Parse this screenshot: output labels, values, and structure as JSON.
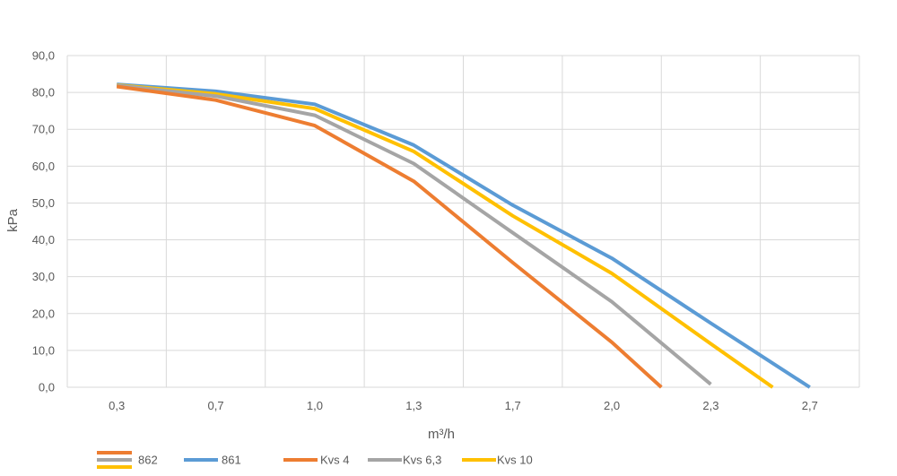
{
  "chart_data": {
    "type": "line",
    "title": "",
    "xlabel": "m³/h",
    "ylabel": "kPa",
    "categories": [
      "0,3",
      "0,7",
      "1,0",
      "1,3",
      "1,7",
      "2,0",
      "2,3",
      "2,7"
    ],
    "y_ticks": [
      "0,0",
      "10,0",
      "20,0",
      "30,0",
      "40,0",
      "50,0",
      "60,0",
      "70,0",
      "80,0",
      "90,0"
    ],
    "ylim": [
      0,
      90
    ],
    "grid": true,
    "legend_position": "bottom-left",
    "series": [
      {
        "name": "861",
        "color": "#5b9bd5",
        "points": [
          [
            0.3,
            82.2
          ],
          [
            0.7,
            80.3
          ],
          [
            1.0,
            76.8
          ],
          [
            1.3,
            65.7
          ],
          [
            1.7,
            49.4
          ],
          [
            2.0,
            35.0
          ],
          [
            2.3,
            17.4
          ],
          [
            2.7,
            0.0
          ]
        ]
      },
      {
        "name": "Kvs 10",
        "color": "#ffc000",
        "points": [
          [
            0.3,
            82.0
          ],
          [
            0.7,
            79.6
          ],
          [
            1.0,
            75.6
          ],
          [
            1.3,
            64.0
          ],
          [
            1.7,
            46.5
          ],
          [
            2.0,
            30.9
          ],
          [
            2.3,
            11.8
          ],
          [
            2.55,
            0.0
          ]
        ]
      },
      {
        "name": "Kvs 6,3",
        "color": "#a5a5a5",
        "points": [
          [
            0.3,
            81.9
          ],
          [
            0.7,
            79.0
          ],
          [
            1.0,
            73.8
          ],
          [
            1.3,
            60.7
          ],
          [
            1.7,
            41.9
          ],
          [
            2.0,
            23.2
          ],
          [
            2.3,
            0.8
          ]
        ]
      },
      {
        "name": "Kvs 4",
        "color": "#ed7d31",
        "points": [
          [
            0.3,
            81.6
          ],
          [
            0.7,
            77.9
          ],
          [
            1.0,
            71.0
          ],
          [
            1.3,
            55.9
          ],
          [
            1.7,
            33.8
          ],
          [
            2.0,
            12.2
          ],
          [
            2.15,
            0.0
          ]
        ]
      }
    ],
    "legend": [
      {
        "label": "862",
        "colors": [
          "#ed7d31",
          "#a5a5a5",
          "#ffc000"
        ]
      },
      {
        "label": "861",
        "colors": [
          "#5b9bd5"
        ]
      },
      {
        "label": "Kvs 4",
        "colors": [
          "#ed7d31"
        ]
      },
      {
        "label": "Kvs 6,3",
        "colors": [
          "#a5a5a5"
        ]
      },
      {
        "label": "Kvs 10",
        "colors": [
          "#ffc000"
        ]
      }
    ]
  }
}
